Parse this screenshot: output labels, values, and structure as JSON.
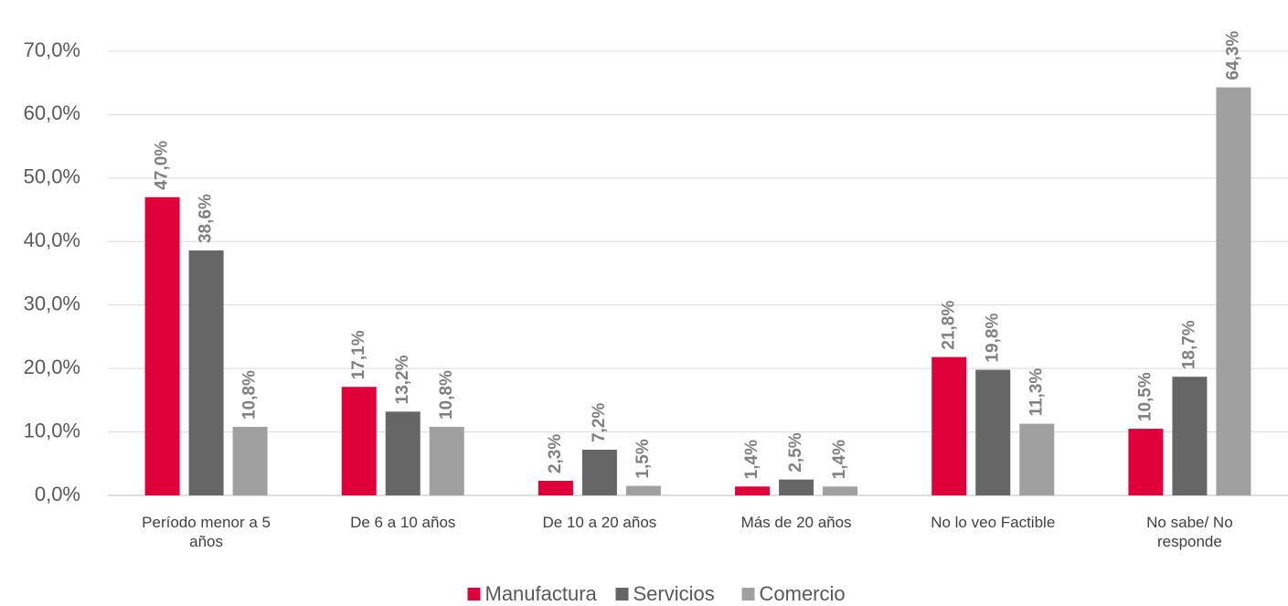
{
  "chart_data": {
    "type": "bar",
    "categories": [
      "Período menor a 5 años",
      "De 6 a 10 años",
      "De 10 a 20 años",
      "Más de 20 años",
      "No lo veo Factible",
      "No sabe/ No responde"
    ],
    "series": [
      {
        "name": "Manufactura",
        "color": "#e0003a",
        "values": [
          47.0,
          17.1,
          2.3,
          1.4,
          21.8,
          10.5
        ],
        "value_labels": [
          "47,0%",
          "17,1%",
          "2,3%",
          "1,4%",
          "21,8%",
          "10,5%"
        ]
      },
      {
        "name": "Servicios",
        "color": "#666666",
        "values": [
          38.6,
          13.2,
          7.2,
          2.5,
          19.8,
          18.7
        ],
        "value_labels": [
          "38,6%",
          "13,2%",
          "7,2%",
          "2,5%",
          "19,8%",
          "18,7%"
        ]
      },
      {
        "name": "Comercio",
        "color": "#a0a0a0",
        "values": [
          10.8,
          10.8,
          1.5,
          1.4,
          11.3,
          64.3
        ],
        "value_labels": [
          "10,8%",
          "10,8%",
          "1,5%",
          "1,4%",
          "11,3%",
          "64,3%"
        ]
      }
    ],
    "ylim": [
      0,
      70
    ],
    "yticks": [
      {
        "value": 0,
        "label": "0,0%"
      },
      {
        "value": 10,
        "label": "10,0%"
      },
      {
        "value": 20,
        "label": "20,0%"
      },
      {
        "value": 30,
        "label": "30,0%"
      },
      {
        "value": 40,
        "label": "40,0%"
      },
      {
        "value": 50,
        "label": "50,0%"
      },
      {
        "value": 60,
        "label": "60,0%"
      },
      {
        "value": 70,
        "label": "70,0%"
      }
    ],
    "grid": true,
    "legend": "bottom"
  }
}
